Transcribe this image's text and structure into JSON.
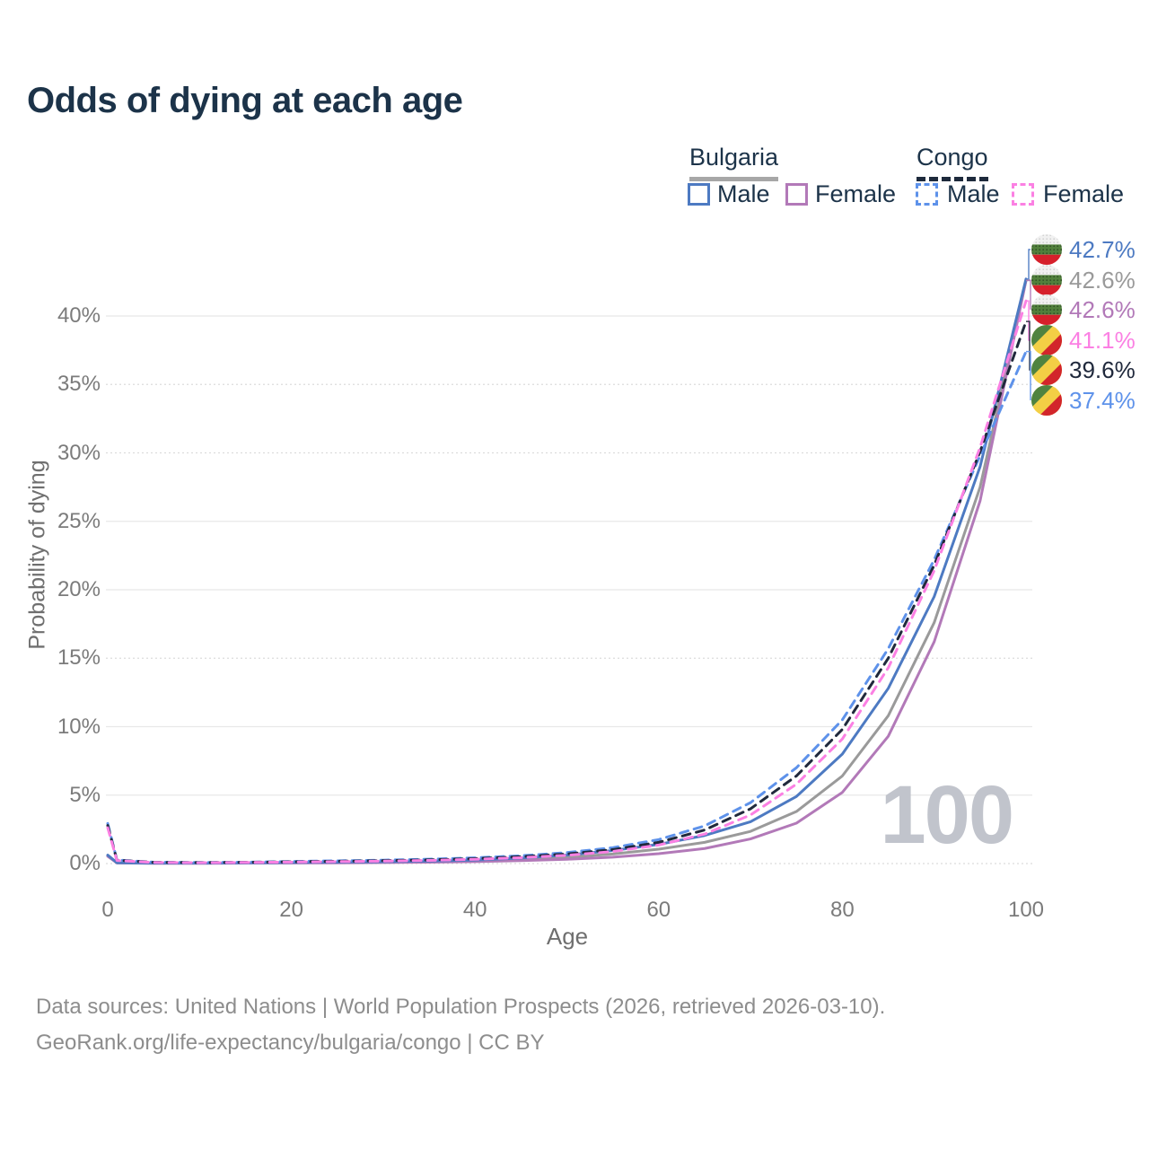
{
  "title": "Odds of dying at each age",
  "legend": {
    "groups": [
      {
        "label": "Bulgaria",
        "items": [
          {
            "label": "Male"
          },
          {
            "label": "Female"
          }
        ]
      },
      {
        "label": "Congo",
        "items": [
          {
            "label": "Male"
          },
          {
            "label": "Female"
          }
        ]
      }
    ]
  },
  "footer": {
    "line1": "Data sources: United Nations | World Population Prospects (2026, retrieved 2026-03-10).",
    "line2": "GeoRank.org/life-expectancy/bulgaria/congo | CC BY"
  },
  "chart_data": {
    "type": "line",
    "title": "Odds of dying at each age",
    "xlabel": "Age",
    "ylabel": "Probability of dying",
    "watermark": "100",
    "xlim": [
      0,
      100
    ],
    "ylim_percent": [
      0,
      45.4
    ],
    "xticks": [
      "0",
      "20",
      "40",
      "60",
      "80",
      "100"
    ],
    "yticks": [
      {
        "value": 0,
        "label": "0%"
      },
      {
        "value": 5,
        "label": "5%"
      },
      {
        "value": 10,
        "label": "10%"
      },
      {
        "value": 15,
        "label": "15%"
      },
      {
        "value": 20,
        "label": "20%"
      },
      {
        "value": 25,
        "label": "25%"
      },
      {
        "value": 30,
        "label": "30%"
      },
      {
        "value": 35,
        "label": "35%"
      },
      {
        "value": 40,
        "label": "40%"
      }
    ],
    "grid": "horizontal",
    "legend_position": "top-right",
    "x_ages": [
      0,
      1,
      5,
      10,
      15,
      20,
      25,
      30,
      35,
      40,
      45,
      50,
      55,
      60,
      65,
      70,
      75,
      80,
      85,
      90,
      95,
      100
    ],
    "series": [
      {
        "name": "Bulgaria Male",
        "country": "bulgaria",
        "sex": "male",
        "style": "solid",
        "color": "#4d7ac2",
        "values": [
          0.62,
          0.06,
          0.03,
          0.03,
          0.05,
          0.08,
          0.1,
          0.13,
          0.18,
          0.25,
          0.4,
          0.62,
          0.95,
          1.4,
          2.05,
          3.05,
          4.9,
          8.0,
          12.8,
          19.5,
          29.0,
          42.7
        ]
      },
      {
        "name": "Bulgaria Both",
        "country": "bulgaria",
        "sex": "both",
        "style": "solid",
        "color": "#9a9a9a",
        "values": [
          0.58,
          0.05,
          0.025,
          0.025,
          0.04,
          0.06,
          0.08,
          0.1,
          0.14,
          0.19,
          0.3,
          0.46,
          0.7,
          1.05,
          1.55,
          2.35,
          3.8,
          6.4,
          10.8,
          17.6,
          27.5,
          42.6
        ]
      },
      {
        "name": "Bulgaria Female",
        "country": "bulgaria",
        "sex": "female",
        "style": "solid",
        "color": "#b279b8",
        "values": [
          0.53,
          0.045,
          0.02,
          0.02,
          0.03,
          0.04,
          0.05,
          0.07,
          0.1,
          0.14,
          0.21,
          0.31,
          0.47,
          0.72,
          1.1,
          1.8,
          2.95,
          5.2,
          9.3,
          16.2,
          26.5,
          42.6
        ]
      },
      {
        "name": "Congo Female",
        "country": "congo",
        "sex": "female",
        "style": "dashed",
        "color": "#fb80e3",
        "values": [
          2.62,
          0.22,
          0.08,
          0.06,
          0.08,
          0.11,
          0.14,
          0.18,
          0.23,
          0.31,
          0.43,
          0.6,
          0.88,
          1.35,
          2.15,
          3.55,
          5.8,
          9.1,
          14.3,
          21.4,
          30.4,
          41.1
        ]
      },
      {
        "name": "Congo Both",
        "country": "congo",
        "sex": "both",
        "style": "dashed",
        "color": "#20293c",
        "values": [
          2.78,
          0.24,
          0.09,
          0.07,
          0.09,
          0.13,
          0.17,
          0.21,
          0.27,
          0.36,
          0.5,
          0.7,
          1.02,
          1.55,
          2.45,
          4.0,
          6.4,
          9.8,
          15.0,
          21.8,
          30.1,
          39.6
        ]
      },
      {
        "name": "Congo Male",
        "country": "congo",
        "sex": "male",
        "style": "dashed",
        "color": "#5e92ea",
        "values": [
          2.93,
          0.26,
          0.1,
          0.08,
          0.1,
          0.15,
          0.2,
          0.25,
          0.32,
          0.42,
          0.57,
          0.8,
          1.16,
          1.75,
          2.75,
          4.45,
          7.0,
          10.5,
          15.7,
          22.2,
          29.8,
          37.4
        ]
      }
    ],
    "end_labels": [
      {
        "value": "42.7%",
        "color": "#4d7ac2",
        "flag": "bulgaria",
        "series": "Bulgaria Male"
      },
      {
        "value": "42.6%",
        "color": "#9a9a9a",
        "flag": "bulgaria",
        "series": "Bulgaria Both"
      },
      {
        "value": "42.6%",
        "color": "#b279b8",
        "flag": "bulgaria",
        "series": "Bulgaria Female"
      },
      {
        "value": "41.1%",
        "color": "#fb80e3",
        "flag": "congo",
        "series": "Congo Female"
      },
      {
        "value": "39.6%",
        "color": "#20293c",
        "flag": "congo",
        "series": "Congo Both"
      },
      {
        "value": "37.4%",
        "color": "#5e92ea",
        "flag": "congo",
        "series": "Congo Male"
      }
    ],
    "flag_colors": {
      "bulgaria": {
        "white": "#f1f1f1",
        "green": "#51803c",
        "red": "#d6202b"
      },
      "congo": {
        "green": "#4f8340",
        "yellow": "#f3cf45",
        "red": "#d2252b"
      }
    }
  }
}
